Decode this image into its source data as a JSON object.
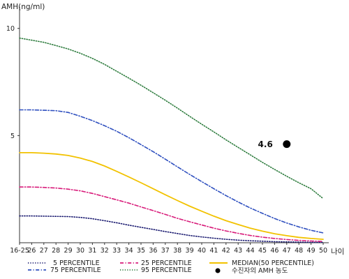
{
  "chart_data": {
    "type": "line",
    "ylabel": "AMH(ng/ml)",
    "xlabel": "나이",
    "x": [
      "16-25",
      "26",
      "27",
      "28",
      "29",
      "30",
      "31",
      "32",
      "33",
      "34",
      "35",
      "36",
      "37",
      "38",
      "39",
      "40",
      "41",
      "42",
      "43",
      "44",
      "45",
      "46",
      "47",
      "48",
      "49",
      "50"
    ],
    "y_ticks": [
      "5",
      "10"
    ],
    "ylim": [
      0,
      11
    ],
    "grid": false,
    "legend_position": "bottom",
    "series": [
      {
        "name": "5 PERCENTILE",
        "color": "#1a1a70",
        "style": "dotted",
        "values": [
          1.25,
          1.25,
          1.24,
          1.23,
          1.22,
          1.18,
          1.12,
          1.03,
          0.93,
          0.82,
          0.72,
          0.62,
          0.52,
          0.43,
          0.34,
          0.27,
          0.21,
          0.16,
          0.12,
          0.09,
          0.07,
          0.05,
          0.04,
          0.03,
          0.02,
          0.02
        ]
      },
      {
        "name": "25 PERCENTILE",
        "color": "#d81b7a",
        "style": "dashdot",
        "values": [
          2.6,
          2.6,
          2.58,
          2.55,
          2.5,
          2.42,
          2.3,
          2.15,
          2.0,
          1.85,
          1.67,
          1.5,
          1.32,
          1.14,
          0.98,
          0.83,
          0.68,
          0.55,
          0.44,
          0.34,
          0.26,
          0.2,
          0.15,
          0.11,
          0.08,
          0.06
        ]
      },
      {
        "name": "MEDIAN(50 PERCENTILE)",
        "color": "#f2c200",
        "style": "solid",
        "values": [
          4.2,
          4.2,
          4.18,
          4.14,
          4.07,
          3.95,
          3.79,
          3.58,
          3.33,
          3.07,
          2.8,
          2.52,
          2.24,
          1.97,
          1.71,
          1.47,
          1.24,
          1.03,
          0.85,
          0.68,
          0.54,
          0.42,
          0.33,
          0.25,
          0.2,
          0.16
        ]
      },
      {
        "name": "75 PERCENTILE",
        "color": "#2e4fbf",
        "style": "dashdot",
        "values": [
          6.2,
          6.2,
          6.18,
          6.16,
          6.08,
          5.9,
          5.7,
          5.46,
          5.2,
          4.9,
          4.58,
          4.25,
          3.9,
          3.54,
          3.19,
          2.85,
          2.52,
          2.2,
          1.9,
          1.62,
          1.37,
          1.13,
          0.92,
          0.74,
          0.58,
          0.46
        ]
      },
      {
        "name": "95 PERCENTILE",
        "color": "#2f7d3f",
        "style": "dotted",
        "values": [
          9.55,
          9.45,
          9.35,
          9.2,
          9.04,
          8.84,
          8.6,
          8.32,
          8.0,
          7.68,
          7.35,
          7.0,
          6.65,
          6.28,
          5.9,
          5.53,
          5.17,
          4.8,
          4.45,
          4.1,
          3.75,
          3.42,
          3.1,
          2.8,
          2.52,
          2.06
        ]
      }
    ],
    "marker": {
      "label": "수진자의 AMH 농도",
      "x": "47",
      "y": 4.6,
      "value_label": "4.6",
      "color": "#000000"
    }
  }
}
